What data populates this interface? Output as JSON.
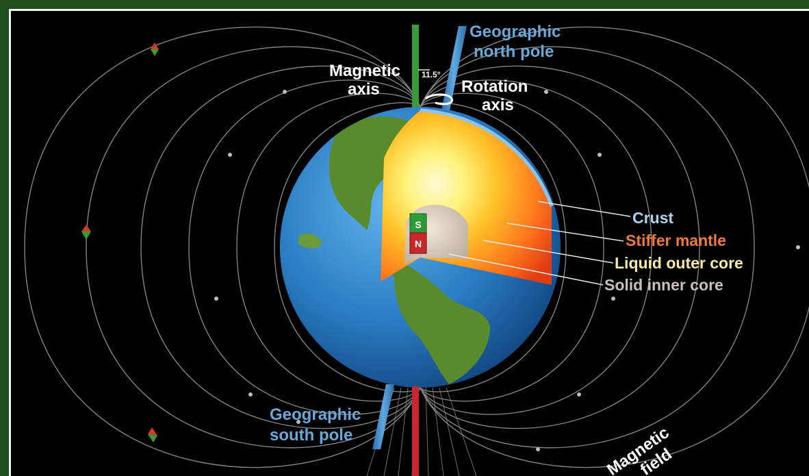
{
  "labels": {
    "geographic_north_line1": "Geographic",
    "geographic_north_line2": "north pole",
    "magnetic_axis_line1": "Magnetic",
    "magnetic_axis_line2": "axis",
    "angle": "11.5°",
    "rotation_axis_line1": "Rotation",
    "rotation_axis_line2": "axis",
    "crust": "Crust",
    "stiffer_mantle": "Stiffer mantle",
    "liquid_outer_core": "Liquid outer core",
    "solid_inner_core": "Solid inner core",
    "geographic_south_line1": "Geographic",
    "geographic_south_line2": "south pole",
    "magnetic_field_line1": "Magnetic",
    "magnetic_field_line2": "field",
    "magnet_s": "S",
    "magnet_n": "N"
  },
  "colors": {
    "frame": "#1f4f1c",
    "background": "#000000",
    "ocean": "#2e7fc2",
    "land": "#5a8a2e",
    "crust_label": "#a9d4f0",
    "mantle_label": "#f07a3a",
    "outer_core_label": "#f6eaa8",
    "inner_core_label": "#c9c1b5",
    "pole_label": "#6aa8d8",
    "magnet_north": "#c8282a",
    "magnet_south": "#2f9a3a"
  }
}
